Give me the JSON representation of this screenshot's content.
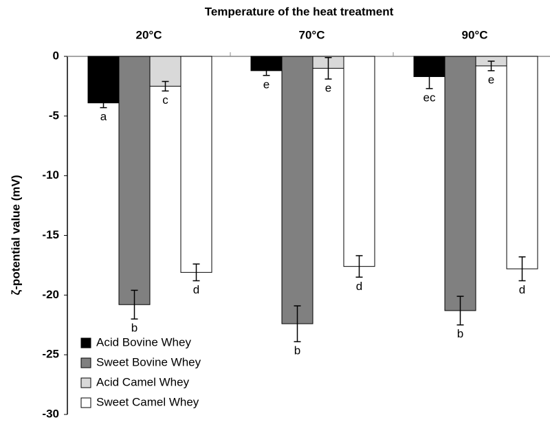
{
  "chart_data": {
    "type": "bar",
    "title": "Temperature of the heat treatment",
    "y_label": "ζ-potential value (mV)",
    "categories": [
      "20°C",
      "70°C",
      "90°C"
    ],
    "series": [
      {
        "name": "Acid Bovine Whey",
        "color": "#000000",
        "values": [
          -3.9,
          -1.2,
          -1.7
        ],
        "errors": [
          0.4,
          0.4,
          1.0
        ],
        "letters": [
          "a",
          "e",
          "ec"
        ]
      },
      {
        "name": "Sweet Bovine Whey",
        "color": "#808080",
        "values": [
          -20.8,
          -22.4,
          -21.3
        ],
        "errors": [
          1.2,
          1.5,
          1.2
        ],
        "letters": [
          "b",
          "b",
          "b"
        ]
      },
      {
        "name": "Acid Camel Whey",
        "color": "#d9d9d9",
        "values": [
          -2.5,
          -1.0,
          -0.8
        ],
        "errors": [
          0.4,
          0.9,
          0.4
        ],
        "letters": [
          "c",
          "e",
          "e"
        ]
      },
      {
        "name": "Sweet Camel Whey",
        "color": "#ffffff",
        "values": [
          -18.1,
          -17.6,
          -17.8
        ],
        "errors": [
          0.7,
          0.9,
          1.0
        ],
        "letters": [
          "d",
          "d",
          "d"
        ]
      }
    ],
    "ylim": [
      -30,
      0
    ],
    "yticks": [
      0,
      -5,
      -10,
      -15,
      -20,
      -25,
      -30
    ],
    "legend": "lower left"
  }
}
